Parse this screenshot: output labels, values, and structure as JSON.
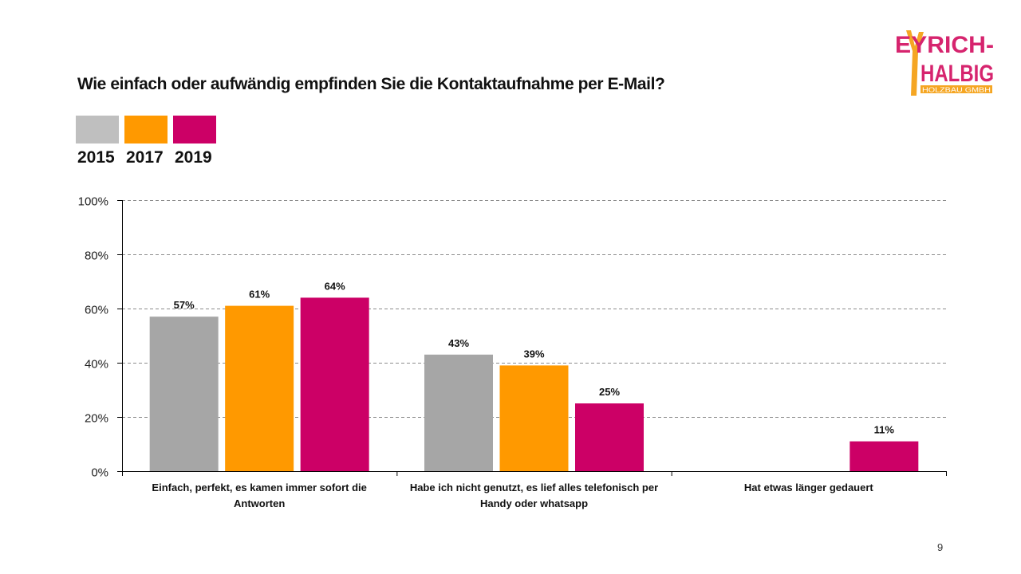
{
  "page": {
    "title": "Wie einfach oder aufwändig empfinden Sie die Kontaktaufnahme per E-Mail?",
    "page_number": "9",
    "logo": {
      "line1": "EYRICH-",
      "line2": "HALBIG",
      "tagline": "HOLZBAU GMBH",
      "primary_color": "#D6246E",
      "accent_color": "#F5A623"
    }
  },
  "legend": [
    {
      "label": "2015",
      "color": "#BFBFBF"
    },
    {
      "label": "2017",
      "color": "#FF9900"
    },
    {
      "label": "2019",
      "color": "#CC0066"
    }
  ],
  "chart_data": {
    "type": "bar",
    "title": "Wie einfach oder aufwändig empfinden Sie die Kontaktaufnahme per E-Mail?",
    "xlabel": "",
    "ylabel": "",
    "ylim": [
      0,
      100
    ],
    "yticks": [
      "0%",
      "20%",
      "40%",
      "60%",
      "80%",
      "100%"
    ],
    "ytick_values": [
      0,
      20,
      40,
      60,
      80,
      100
    ],
    "grid": true,
    "legend_position": "top-left",
    "categories": [
      "Einfach, perfekt, es kamen immer sofort die Antworten",
      "Habe ich nicht genutzt, es lief alles telefonisch per Handy oder whatsapp",
      "Hat etwas länger gedauert"
    ],
    "category_lines": [
      [
        "Einfach, perfekt, es kamen immer sofort die",
        "Antworten"
      ],
      [
        "Habe ich nicht genutzt, es lief alles telefonisch per",
        "Handy oder whatsapp"
      ],
      [
        "Hat etwas länger gedauert"
      ]
    ],
    "series": [
      {
        "name": "2015",
        "color": "#A6A6A6",
        "values": [
          57,
          43,
          null
        ],
        "labels": [
          "57%",
          "43%",
          ""
        ]
      },
      {
        "name": "2017",
        "color": "#FF9900",
        "values": [
          61,
          39,
          null
        ],
        "labels": [
          "61%",
          "39%",
          ""
        ]
      },
      {
        "name": "2019",
        "color": "#CC0066",
        "values": [
          64,
          25,
          11
        ],
        "labels": [
          "64%",
          "25%",
          "11%"
        ]
      }
    ]
  }
}
